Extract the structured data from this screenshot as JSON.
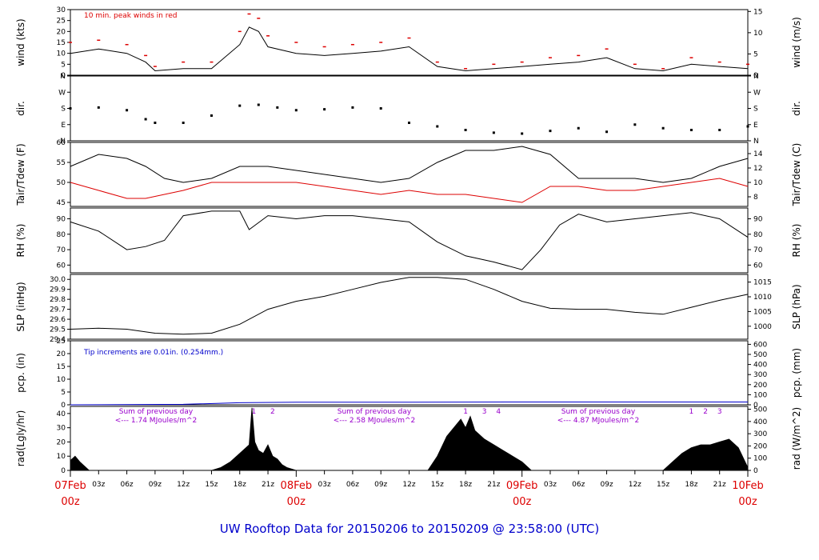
{
  "title": "UW Rooftop Data for 20150206  to  20150209 @ 23:58:00  (UTC)",
  "colors": {
    "black": "#000000",
    "red": "#dd0000",
    "blue": "#0000cc",
    "purple": "#9900cc"
  },
  "time_axis": {
    "hour_ticks": [
      "03z",
      "06z",
      "09z",
      "12z",
      "15z",
      "18z",
      "21z"
    ],
    "days": [
      {
        "date": "07Feb",
        "hour": "00z"
      },
      {
        "date": "08Feb",
        "hour": "00z"
      },
      {
        "date": "09Feb",
        "hour": "00z"
      },
      {
        "date": "10Feb",
        "hour": "00z"
      }
    ]
  },
  "chart_data": [
    {
      "type": "line",
      "id": "wind",
      "left_label": "wind (kts)",
      "right_label": "wind (m/s)",
      "ylim": [
        0,
        30
      ],
      "left_ticks": [
        "0",
        "5",
        "10",
        "15",
        "20",
        "25",
        "30"
      ],
      "right_ticks": [
        "0",
        "5",
        "10",
        "15"
      ],
      "annotation": "10 min. peak winds in red",
      "series": [
        {
          "name": "",
          "x": [
            0,
            3,
            6,
            8,
            9,
            12,
            15,
            18,
            19,
            20,
            21,
            24,
            27,
            30,
            33,
            36,
            39,
            42,
            45,
            48,
            51,
            54,
            57,
            60,
            63,
            66,
            69,
            72
          ],
          "values": [
            10,
            12,
            10,
            6,
            2,
            3,
            3,
            14,
            22,
            20,
            13,
            10,
            9,
            10,
            11,
            13,
            4,
            2,
            3,
            4,
            5,
            6,
            8,
            3,
            2,
            5,
            4,
            3
          ]
        },
        {
          "name": "10 min. peak winds",
          "x": [
            0,
            3,
            6,
            8,
            9,
            12,
            15,
            18,
            19,
            20,
            21,
            24,
            27,
            30,
            33,
            36,
            39,
            42,
            45,
            48,
            51,
            54,
            57,
            60,
            63,
            66,
            69,
            72
          ],
          "values": [
            15,
            16,
            14,
            9,
            4,
            6,
            6,
            20,
            28,
            26,
            18,
            15,
            13,
            14,
            15,
            17,
            6,
            3,
            5,
            6,
            8,
            9,
            12,
            5,
            3,
            8,
            6,
            5
          ]
        }
      ]
    },
    {
      "type": "scatter",
      "id": "dir",
      "left_label": "dir.",
      "right_label": "dir.",
      "ticks": [
        "N",
        "E",
        "S",
        "W",
        "N"
      ],
      "series": [
        {
          "name": "",
          "x": [
            0,
            3,
            6,
            8,
            9,
            12,
            15,
            18,
            20,
            22,
            24,
            27,
            30,
            33,
            36,
            39,
            42,
            45,
            48,
            51,
            54,
            57,
            60,
            63,
            66,
            69,
            72
          ],
          "values": [
            180,
            185,
            170,
            120,
            100,
            100,
            140,
            195,
            200,
            185,
            170,
            175,
            185,
            180,
            100,
            80,
            60,
            45,
            40,
            55,
            70,
            50,
            90,
            70,
            60,
            60,
            80
          ]
        }
      ]
    },
    {
      "type": "line",
      "id": "temp",
      "left_label": "Tair/Tdew (F)",
      "right_label": "Tair/Tdew (C)",
      "ylim": [
        44,
        60
      ],
      "left_ticks": [
        "45",
        "50",
        "55",
        "60"
      ],
      "right_ticks": [
        "8",
        "10",
        "12",
        "14"
      ],
      "series": [
        {
          "name": "Tair",
          "x": [
            0,
            3,
            6,
            8,
            10,
            12,
            15,
            18,
            21,
            24,
            27,
            30,
            33,
            36,
            39,
            42,
            45,
            48,
            51,
            54,
            57,
            60,
            63,
            66,
            69,
            72
          ],
          "values": [
            54,
            57,
            56,
            54,
            51,
            50,
            51,
            54,
            54,
            53,
            52,
            51,
            50,
            51,
            55,
            58,
            58,
            59,
            57,
            51,
            51,
            51,
            50,
            51,
            54,
            56
          ]
        },
        {
          "name": "Tdew",
          "x": [
            0,
            3,
            6,
            8,
            10,
            12,
            15,
            18,
            21,
            24,
            27,
            30,
            33,
            36,
            39,
            42,
            45,
            48,
            51,
            54,
            57,
            60,
            63,
            66,
            69,
            72
          ],
          "values": [
            50,
            48,
            46,
            46,
            47,
            48,
            50,
            50,
            50,
            50,
            49,
            48,
            47,
            48,
            47,
            47,
            46,
            45,
            49,
            49,
            48,
            48,
            49,
            50,
            51,
            49
          ]
        }
      ]
    },
    {
      "type": "line",
      "id": "rh",
      "left_label": "RH (%)",
      "right_label": "RH (%)",
      "ylim": [
        55,
        97
      ],
      "ticks": [
        "60",
        "70",
        "80",
        "90"
      ],
      "series": [
        {
          "name": "",
          "x": [
            0,
            3,
            6,
            8,
            10,
            12,
            15,
            18,
            19,
            21,
            24,
            27,
            30,
            33,
            36,
            39,
            42,
            45,
            48,
            50,
            52,
            54,
            57,
            60,
            63,
            66,
            69,
            72
          ],
          "values": [
            88,
            82,
            70,
            72,
            76,
            92,
            95,
            95,
            83,
            92,
            90,
            92,
            92,
            90,
            88,
            75,
            66,
            62,
            57,
            70,
            86,
            93,
            88,
            90,
            92,
            94,
            90,
            78
          ]
        }
      ]
    },
    {
      "type": "line",
      "id": "slp",
      "left_label": "SLP (inHg)",
      "right_label": "SLP (hPa)",
      "ylim": [
        29.4,
        30.05
      ],
      "left_ticks": [
        "29.4",
        "29.5",
        "29.6",
        "29.7",
        "29.8",
        "29.9",
        "30.0"
      ],
      "right_ticks": [
        "1000",
        "1005",
        "1010",
        "1015"
      ],
      "series": [
        {
          "name": "",
          "x": [
            0,
            3,
            6,
            9,
            12,
            15,
            18,
            21,
            24,
            27,
            30,
            33,
            36,
            39,
            42,
            45,
            48,
            51,
            54,
            57,
            60,
            63,
            66,
            69,
            72
          ],
          "values": [
            29.5,
            29.51,
            29.5,
            29.46,
            29.45,
            29.46,
            29.55,
            29.7,
            29.78,
            29.83,
            29.9,
            29.97,
            30.02,
            30.02,
            30.0,
            29.9,
            29.78,
            29.71,
            29.7,
            29.7,
            29.67,
            29.65,
            29.72,
            29.79,
            29.85
          ]
        }
      ]
    },
    {
      "type": "area",
      "id": "pcp",
      "left_label": "pcp. (in)",
      "right_label": "pcp. (mm)",
      "ylim": [
        0,
        25
      ],
      "left_ticks": [
        "0",
        "5",
        "10",
        "15",
        "20",
        "25"
      ],
      "right_ticks": [
        "0",
        "100",
        "200",
        "300",
        "400",
        "500",
        "600"
      ],
      "annotation": "Tip increments are 0.01in. (0.254mm.)",
      "series": [
        {
          "name": "",
          "x": [
            0,
            12,
            18,
            24,
            36,
            48,
            60,
            72
          ],
          "values": [
            0,
            0.2,
            0.8,
            1.0,
            1.0,
            1.1,
            1.1,
            1.1
          ]
        }
      ]
    },
    {
      "type": "area",
      "id": "rad",
      "left_label": "rad(Lgly/hr)",
      "right_label": "rad (W/m^2)",
      "ylim": [
        0,
        45
      ],
      "left_ticks": [
        "0",
        "10",
        "20",
        "30",
        "40"
      ],
      "right_ticks": [
        "0",
        "100",
        "200",
        "300",
        "400",
        "500"
      ],
      "annotations": [
        {
          "line1": "Sum of previous day",
          "line2": "<--- 1.74 MJoules/m^2"
        },
        {
          "line1": "Sum of previous day",
          "line2": "<--- 2.58 MJoules/m^2"
        },
        {
          "line1": "Sum of previous day",
          "line2": "<--- 4.87 MJoules/m^2"
        }
      ],
      "markers": [
        {
          "label": "1",
          "x": 19.5
        },
        {
          "label": "2",
          "x": 21.5
        },
        {
          "label": "1",
          "x": 42.0
        },
        {
          "label": "3",
          "x": 44.0
        },
        {
          "label": "4",
          "x": 45.5
        },
        {
          "label": "1",
          "x": 66.0
        },
        {
          "label": "2",
          "x": 67.5
        },
        {
          "label": "3",
          "x": 69.0
        }
      ],
      "series": [
        {
          "name": "",
          "x": [
            0,
            0.5,
            1,
            2,
            15,
            16,
            17,
            18,
            19,
            19.3,
            19.6,
            20,
            20.5,
            21,
            21.5,
            22,
            22.5,
            23,
            24,
            38,
            39,
            40,
            41,
            41.5,
            42,
            42.5,
            43,
            44,
            45,
            46,
            47,
            48,
            49,
            63,
            64,
            65,
            66,
            67,
            68,
            69,
            70,
            71,
            72
          ],
          "values": [
            7,
            10,
            6,
            0,
            0,
            2,
            6,
            12,
            18,
            44,
            20,
            14,
            12,
            18,
            10,
            8,
            4,
            2,
            0,
            0,
            10,
            24,
            32,
            36,
            30,
            38,
            28,
            22,
            18,
            14,
            10,
            6,
            0,
            0,
            6,
            12,
            16,
            18,
            18,
            20,
            22,
            16,
            2
          ]
        }
      ]
    }
  ]
}
